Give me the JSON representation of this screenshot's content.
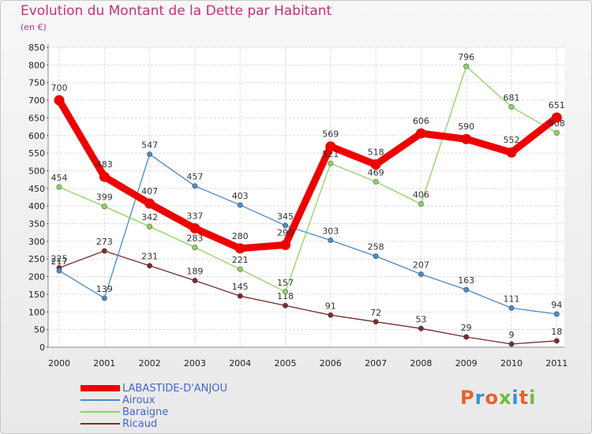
{
  "title": "Evolution du Montant de la Dette par Habitant",
  "unit_note": "(en €)",
  "logo": {
    "text": "Proxiti",
    "colors": [
      "#e8622a",
      "#3a8fd6",
      "#e8622a",
      "#6bbf3a",
      "#3a8fd6",
      "#e8622a",
      "#6bbf3a"
    ]
  },
  "chart_data": {
    "type": "line",
    "title": "Evolution du Montant de la Dette par Habitant",
    "ylabel": "(en €)",
    "xlabel": "",
    "x": [
      "2000",
      "2001",
      "2002",
      "2003",
      "2004",
      "2005",
      "2006",
      "2007",
      "2008",
      "2009",
      "2010",
      "2011"
    ],
    "y_ticks": [
      0,
      50,
      100,
      150,
      200,
      250,
      300,
      350,
      400,
      450,
      500,
      550,
      600,
      650,
      700,
      750,
      800,
      850
    ],
    "ylim": [
      0,
      850
    ],
    "grid": true,
    "legend_position": "bottom-left",
    "series": [
      {
        "name": "LABASTIDE-D'ANJOU",
        "color": "#ee0000",
        "values": [
          700,
          483,
          407,
          337,
          280,
          290,
          569,
          518,
          606,
          590,
          552,
          651
        ]
      },
      {
        "name": "Airoux",
        "color": "#4a8ac9",
        "values": [
          217,
          139,
          547,
          457,
          403,
          345,
          303,
          258,
          207,
          163,
          111,
          94
        ]
      },
      {
        "name": "Baraigne",
        "color": "#8fd45e",
        "values": [
          454,
          399,
          342,
          283,
          221,
          157,
          521,
          469,
          406,
          796,
          681,
          608
        ]
      },
      {
        "name": "Ricaud",
        "color": "#7a2a2a",
        "values": [
          225,
          273,
          231,
          189,
          145,
          118,
          91,
          72,
          53,
          29,
          9,
          18
        ]
      }
    ]
  }
}
